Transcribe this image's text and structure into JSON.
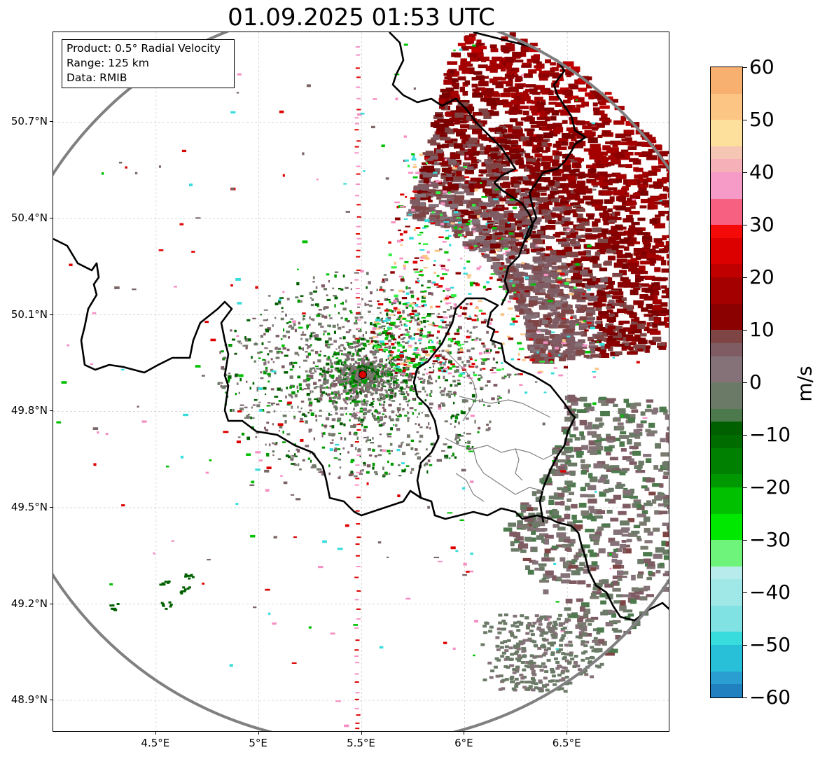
{
  "title": "01.09.2025 01:53 UTC",
  "info_box": {
    "product": "Product: 0.5° Radial Velocity",
    "range": "Range: 125 km",
    "data_source": "Data: RMIB"
  },
  "axes": {
    "lat_ticks": [
      "50.7°N",
      "50.4°N",
      "50.1°N",
      "49.8°N",
      "49.5°N",
      "49.2°N",
      "48.9°N"
    ],
    "lon_ticks": [
      "4.5°E",
      "5°E",
      "5.5°E",
      "6°E",
      "6.5°E"
    ],
    "lat_values": [
      50.7,
      50.4,
      50.1,
      49.8,
      49.5,
      49.2,
      48.9
    ],
    "lon_values": [
      4.5,
      5.0,
      5.5,
      6.0,
      6.5
    ],
    "extent": {
      "lon_min": 4.0,
      "lon_max": 7.0,
      "lat_min": 48.8,
      "lat_max": 50.98
    }
  },
  "radar": {
    "lon": 5.505,
    "lat": 49.914,
    "range_km": 125
  },
  "colorbar": {
    "unit": "m/s",
    "tick_labels": [
      "60",
      "50",
      "40",
      "30",
      "20",
      "10",
      "0",
      "−10",
      "−20",
      "−30",
      "−40",
      "−50",
      "−60"
    ],
    "tick_values": [
      60,
      50,
      40,
      30,
      20,
      10,
      0,
      -10,
      -20,
      -30,
      -40,
      -50,
      -60
    ],
    "range": [
      -60,
      60
    ]
  },
  "colors": {
    "range_ring": "#808080",
    "border_country": "#000000",
    "border_province": "#808080",
    "grid": "#c0c0c0",
    "radar_marker": "#dd0000",
    "receding_strong": "#8b0000",
    "near_zero": "#7a6666",
    "approaching": "#006400"
  }
}
